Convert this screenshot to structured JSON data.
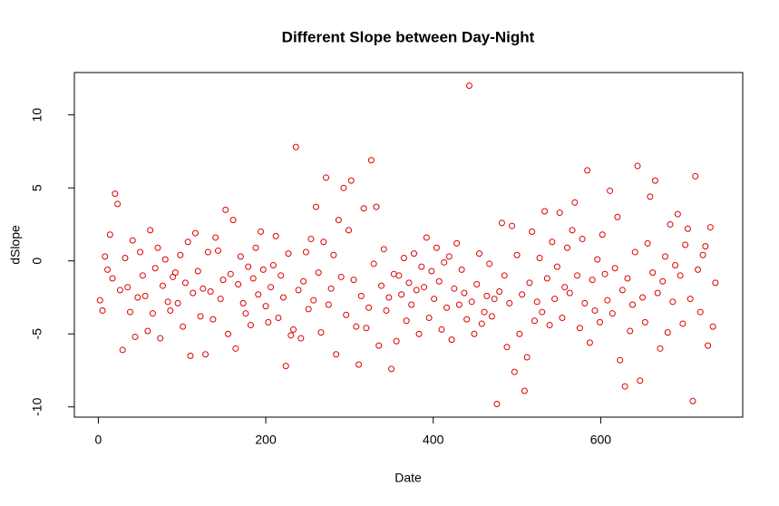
{
  "chart_data": {
    "type": "scatter",
    "title": "Different Slope between Day-Night",
    "x_label": "Date",
    "y_label": "dSlope",
    "color": "#dd0000",
    "xlim": [
      -28.6,
      769.6
    ],
    "xticks": [
      0,
      200,
      400,
      600
    ],
    "ylim": [
      -10.7,
      12.9
    ],
    "yticks": [
      -10,
      -5,
      0,
      5,
      10
    ],
    "x": [
      2,
      5,
      8,
      11,
      14,
      17,
      20,
      23,
      26,
      29,
      32,
      35,
      38,
      41,
      44,
      47,
      50,
      53,
      56,
      59,
      62,
      65,
      68,
      71,
      74,
      77,
      80,
      83,
      86,
      89,
      92,
      95,
      98,
      101,
      104,
      107,
      110,
      113,
      116,
      119,
      122,
      125,
      128,
      131,
      134,
      137,
      140,
      143,
      146,
      149,
      152,
      155,
      158,
      161,
      164,
      167,
      170,
      173,
      176,
      179,
      182,
      185,
      188,
      191,
      194,
      197,
      200,
      203,
      206,
      209,
      212,
      215,
      218,
      221,
      224,
      227,
      230,
      233,
      236,
      239,
      242,
      245,
      248,
      251,
      254,
      257,
      260,
      263,
      266,
      269,
      272,
      275,
      278,
      281,
      284,
      287,
      290,
      293,
      296,
      299,
      302,
      305,
      308,
      311,
      314,
      317,
      320,
      323,
      326,
      329,
      332,
      335,
      338,
      341,
      344,
      347,
      350,
      353,
      356,
      359,
      362,
      365,
      368,
      371,
      374,
      377,
      380,
      383,
      386,
      389,
      392,
      395,
      398,
      401,
      404,
      407,
      410,
      413,
      416,
      419,
      422,
      425,
      428,
      431,
      434,
      437,
      440,
      443,
      446,
      449,
      452,
      455,
      458,
      461,
      464,
      467,
      470,
      473,
      476,
      479,
      482,
      485,
      488,
      491,
      494,
      497,
      500,
      503,
      506,
      509,
      512,
      515,
      518,
      521,
      524,
      527,
      530,
      533,
      536,
      539,
      542,
      545,
      548,
      551,
      554,
      557,
      560,
      563,
      566,
      569,
      572,
      575,
      578,
      581,
      584,
      587,
      590,
      593,
      596,
      599,
      602,
      605,
      608,
      611,
      614,
      617,
      620,
      623,
      626,
      629,
      632,
      635,
      638,
      641,
      644,
      647,
      650,
      653,
      656,
      659,
      662,
      665,
      668,
      671,
      674,
      677,
      680,
      683,
      686,
      689,
      692,
      695,
      698,
      701,
      704,
      707,
      710,
      713,
      716,
      719,
      722,
      725,
      728,
      731,
      734,
      737
    ],
    "values": [
      -2.7,
      -3.4,
      0.3,
      -0.6,
      1.8,
      -1.2,
      4.6,
      3.9,
      -2.0,
      -6.1,
      0.2,
      -1.8,
      -3.5,
      1.4,
      -5.2,
      -2.5,
      0.6,
      -1.0,
      -2.4,
      -4.8,
      2.1,
      -3.6,
      -0.5,
      0.9,
      -5.3,
      -1.7,
      0.1,
      -2.8,
      -3.4,
      -1.1,
      -0.8,
      -2.9,
      0.4,
      -4.5,
      -1.5,
      1.3,
      -6.5,
      -2.2,
      1.9,
      -0.7,
      -3.8,
      -1.9,
      -6.4,
      0.6,
      -2.1,
      -4.0,
      1.6,
      0.7,
      -2.6,
      -1.3,
      3.5,
      -5.0,
      -0.9,
      2.8,
      -6.0,
      -1.6,
      0.3,
      -2.9,
      -3.6,
      -0.4,
      -4.4,
      -1.2,
      0.9,
      -2.3,
      2.0,
      -0.6,
      -3.1,
      -4.2,
      -1.8,
      -0.3,
      1.7,
      -3.9,
      -1.0,
      -2.5,
      -7.2,
      0.5,
      -5.1,
      -4.7,
      7.8,
      -2.0,
      -5.3,
      -1.4,
      0.6,
      -3.3,
      1.5,
      -2.7,
      3.7,
      -0.8,
      -4.9,
      1.3,
      5.7,
      -3.0,
      -1.9,
      0.4,
      -6.4,
      2.8,
      -1.1,
      5.0,
      -3.7,
      2.1,
      5.5,
      -1.3,
      -4.5,
      -7.1,
      -2.4,
      3.6,
      -4.6,
      -3.2,
      6.9,
      -0.2,
      3.7,
      -5.8,
      -1.7,
      0.8,
      -3.4,
      -2.5,
      -7.4,
      -0.9,
      -5.5,
      -1.0,
      -2.3,
      0.2,
      -4.1,
      -1.5,
      -3.0,
      0.5,
      -2.0,
      -5.0,
      -0.4,
      -1.8,
      1.6,
      -3.9,
      -0.7,
      -2.6,
      0.9,
      -1.4,
      -4.7,
      -0.1,
      -3.2,
      0.3,
      -5.4,
      -1.9,
      1.2,
      -3.0,
      -0.6,
      -2.2,
      -4.0,
      12.0,
      -2.8,
      -5.0,
      -1.6,
      0.5,
      -4.3,
      -3.5,
      -2.4,
      -0.2,
      -3.8,
      -2.6,
      -9.8,
      -2.1,
      2.6,
      -1.0,
      -5.9,
      -2.9,
      2.4,
      -7.6,
      0.4,
      -5.0,
      -2.3,
      -8.9,
      -6.6,
      -1.5,
      2.0,
      -4.1,
      -2.8,
      0.2,
      -3.5,
      3.4,
      -1.2,
      -4.4,
      1.3,
      -2.6,
      -0.4,
      3.3,
      -3.9,
      -1.8,
      0.9,
      -2.2,
      2.1,
      4.0,
      -1.0,
      -4.6,
      1.5,
      -2.9,
      6.2,
      -5.6,
      -1.3,
      -3.4,
      0.1,
      -4.2,
      1.8,
      -0.9,
      -2.7,
      4.8,
      -3.6,
      -0.5,
      3.0,
      -6.8,
      -2.0,
      -8.6,
      -1.2,
      -4.8,
      -3.0,
      0.6,
      6.5,
      -8.2,
      -2.5,
      -4.2,
      1.2,
      4.4,
      -0.8,
      5.5,
      -2.2,
      -6.0,
      -1.4,
      0.3,
      -4.9,
      2.5,
      -2.8,
      -0.3,
      3.2,
      -1.0,
      -4.3,
      1.1,
      2.2,
      -2.6,
      -9.6,
      5.8,
      -0.6,
      -3.5,
      0.4,
      1.0,
      -5.8,
      2.3,
      -4.5,
      -1.5
    ]
  }
}
